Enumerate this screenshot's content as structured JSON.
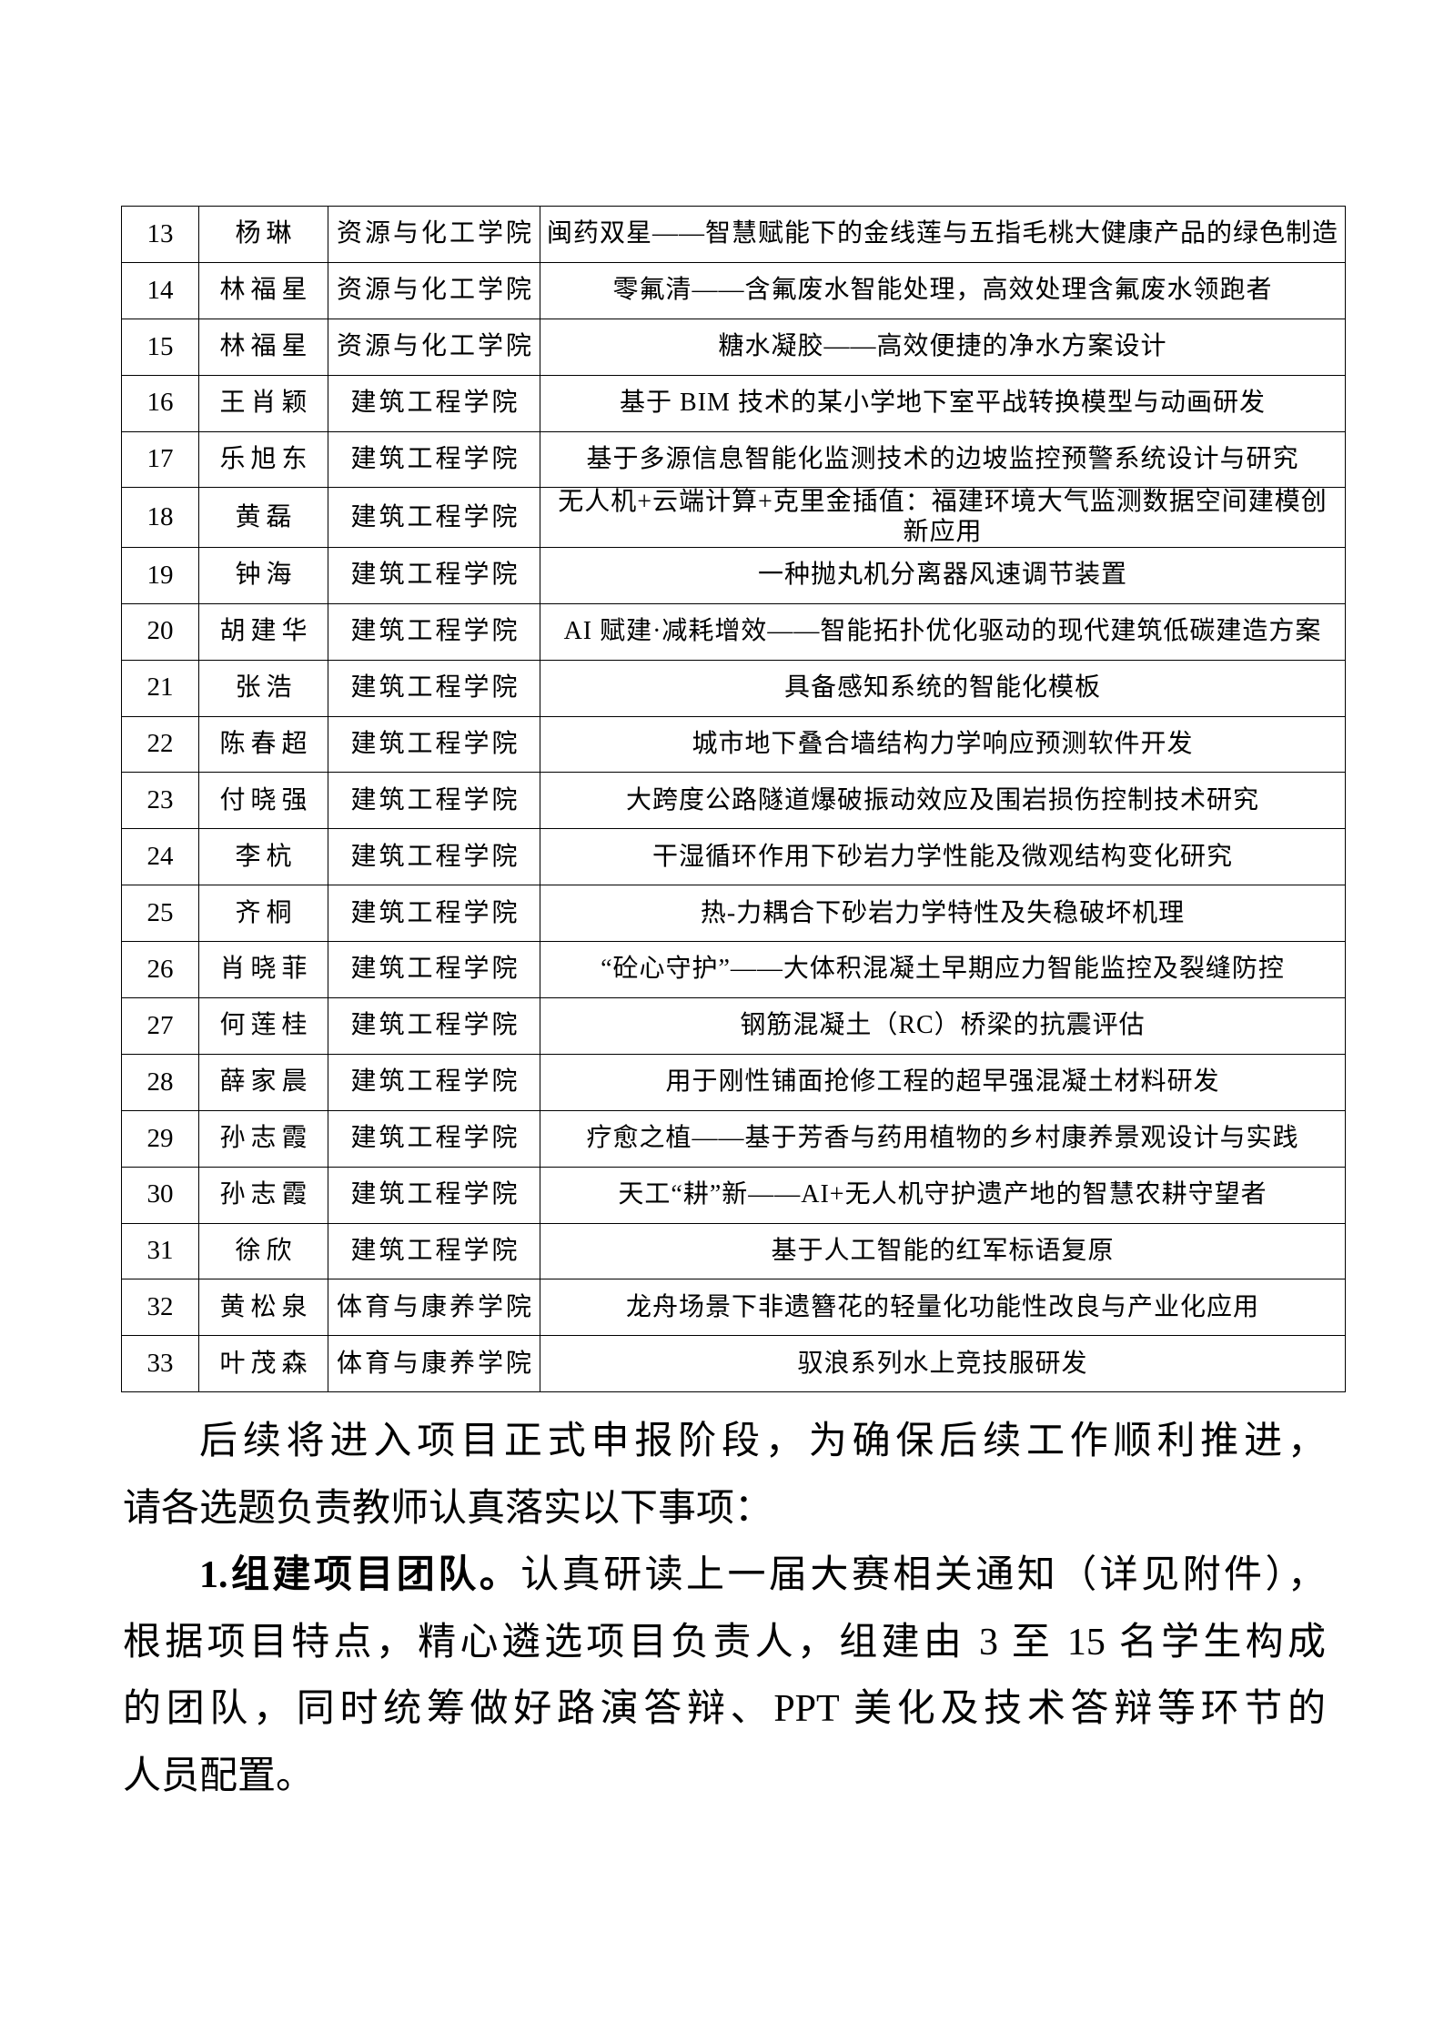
{
  "table": {
    "rows": [
      {
        "no": "13",
        "name": "杨琳",
        "college": "资源与化工学院",
        "title": "闽药双星——智慧赋能下的金线莲与五指毛桃大健康产品的绿色制造"
      },
      {
        "no": "14",
        "name": "林福星",
        "college": "资源与化工学院",
        "title": "零氟清——含氟废水智能处理，高效处理含氟废水领跑者"
      },
      {
        "no": "15",
        "name": "林福星",
        "college": "资源与化工学院",
        "title": "糖水凝胶——高效便捷的净水方案设计"
      },
      {
        "no": "16",
        "name": "王肖颖",
        "college": "建筑工程学院",
        "title": "基于 BIM 技术的某小学地下室平战转换模型与动画研发"
      },
      {
        "no": "17",
        "name": "乐旭东",
        "college": "建筑工程学院",
        "title": "基于多源信息智能化监测技术的边坡监控预警系统设计与研究"
      },
      {
        "no": "18",
        "name": "黄磊",
        "college": "建筑工程学院",
        "title": "无人机+云端计算+克里金插值：福建环境大气监测数据空间建模创新应用"
      },
      {
        "no": "19",
        "name": "钟海",
        "college": "建筑工程学院",
        "title": "一种抛丸机分离器风速调节装置"
      },
      {
        "no": "20",
        "name": "胡建华",
        "college": "建筑工程学院",
        "title": "AI 赋建·减耗增效——智能拓扑优化驱动的现代建筑低碳建造方案"
      },
      {
        "no": "21",
        "name": "张浩",
        "college": "建筑工程学院",
        "title": "具备感知系统的智能化模板"
      },
      {
        "no": "22",
        "name": "陈春超",
        "college": "建筑工程学院",
        "title": "城市地下叠合墙结构力学响应预测软件开发"
      },
      {
        "no": "23",
        "name": "付晓强",
        "college": "建筑工程学院",
        "title": "大跨度公路隧道爆破振动效应及围岩损伤控制技术研究"
      },
      {
        "no": "24",
        "name": "李杭",
        "college": "建筑工程学院",
        "title": "干湿循环作用下砂岩力学性能及微观结构变化研究"
      },
      {
        "no": "25",
        "name": "齐桐",
        "college": "建筑工程学院",
        "title": "热-力耦合下砂岩力学特性及失稳破坏机理"
      },
      {
        "no": "26",
        "name": "肖晓菲",
        "college": "建筑工程学院",
        "title": "“砼心守护”——大体积混凝土早期应力智能监控及裂缝防控"
      },
      {
        "no": "27",
        "name": "何莲桂",
        "college": "建筑工程学院",
        "title": "钢筋混凝土（RC）桥梁的抗震评估"
      },
      {
        "no": "28",
        "name": "薛家晨",
        "college": "建筑工程学院",
        "title": "用于刚性铺面抢修工程的超早强混凝土材料研发"
      },
      {
        "no": "29",
        "name": "孙志霞",
        "college": "建筑工程学院",
        "title": "疗愈之植——基于芳香与药用植物的乡村康养景观设计与实践"
      },
      {
        "no": "30",
        "name": "孙志霞",
        "college": "建筑工程学院",
        "title": "天工“耕”新——AI+无人机守护遗产地的智慧农耕守望者"
      },
      {
        "no": "31",
        "name": "徐欣",
        "college": "建筑工程学院",
        "title": "基于人工智能的红军标语复原"
      },
      {
        "no": "32",
        "name": "黄松泉",
        "college": "体育与康养学院",
        "title": "龙舟场景下非遗簪花的轻量化功能性改良与产业化应用"
      },
      {
        "no": "33",
        "name": "叶茂森",
        "college": "体育与康养学院",
        "title": "驭浪系列水上竞技服研发"
      }
    ]
  },
  "body": {
    "lines": [
      {
        "text": "后续将进入项目正式申报阶段，为确保后续工作顺利推进，",
        "indent": true,
        "stretch": true
      },
      {
        "text": "请各选题负责教师认真落实以下事项：",
        "indent": false,
        "stretch": false
      },
      {
        "bold": "1.组建项目团队。",
        "text": "认真研读上一届大赛相关通知（详见附件），",
        "indent": true,
        "stretch": true
      },
      {
        "text": "根据项目特点，精心遴选项目负责人，组建由 3 至 15 名学生构成",
        "indent": false,
        "stretch": true
      },
      {
        "text": "的团队，同时统筹做好路演答辩、PPT 美化及技术答辩等环节的",
        "indent": false,
        "stretch": true
      },
      {
        "text": "人员配置。",
        "indent": false,
        "stretch": false
      }
    ]
  }
}
